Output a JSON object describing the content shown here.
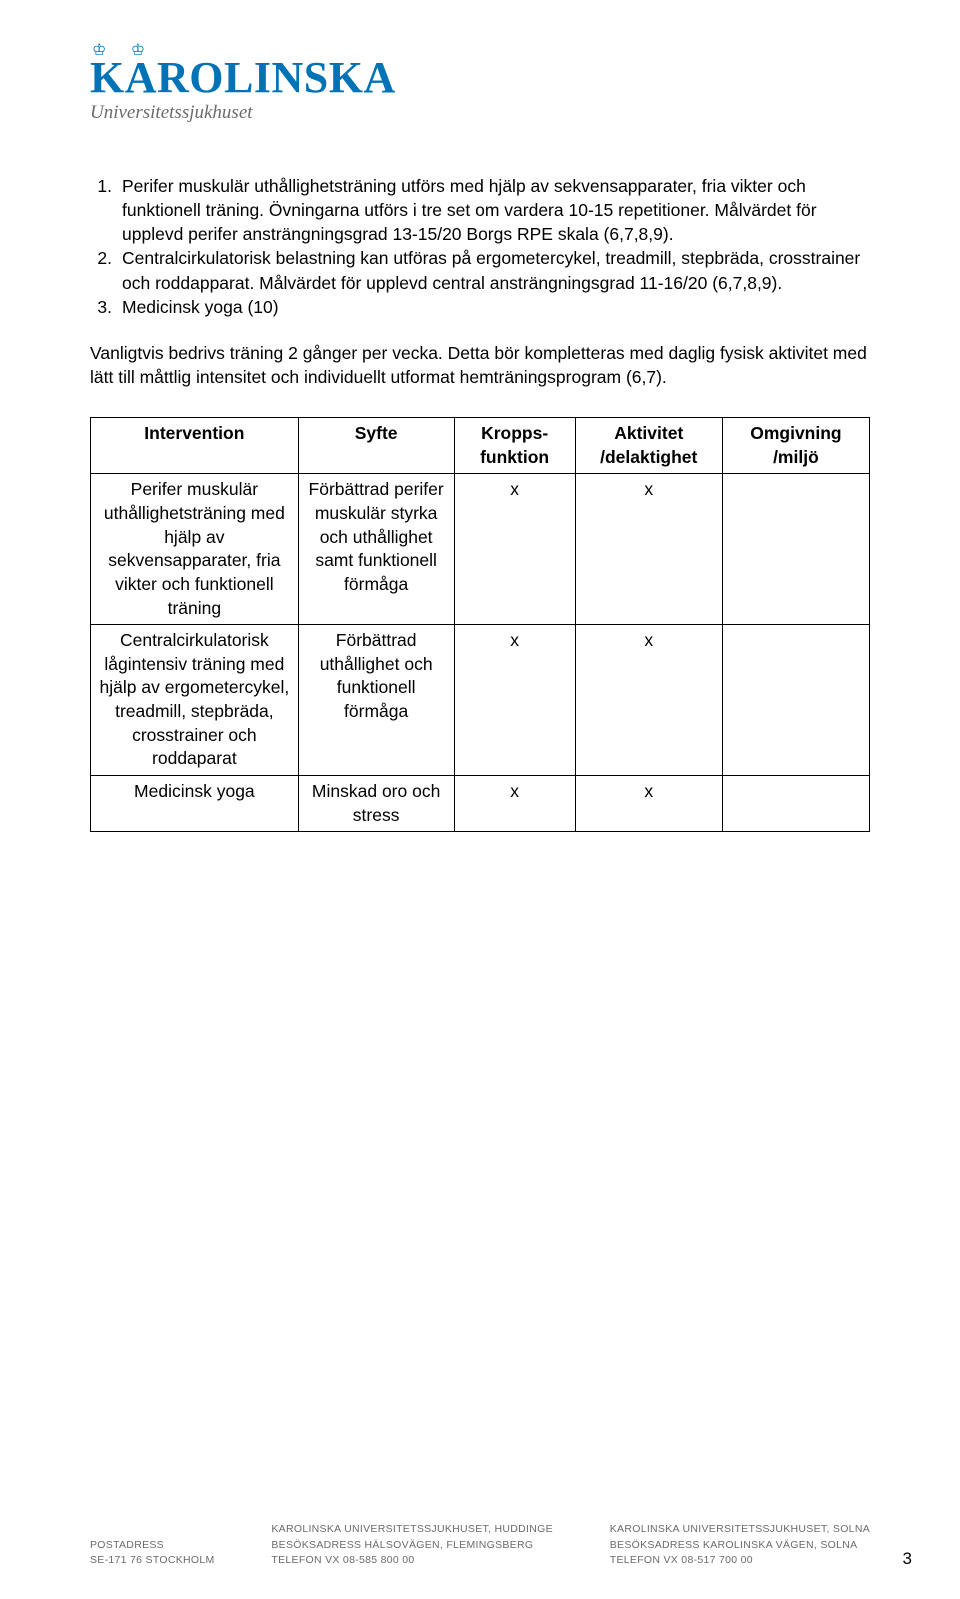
{
  "logo": {
    "main": "KAROLINSKA",
    "sub": "Universitetssjukhuset",
    "color": "#0073b6",
    "sub_color": "#6b6b6b"
  },
  "list": [
    {
      "num": "1.",
      "text": "Perifer muskulär uthållighetsträning utförs med hjälp av sekvensapparater, fria vikter och funktionell träning. Övningarna utförs i tre set om vardera 10-15 repetitioner. Målvärdet för upplevd perifer ansträngningsgrad 13-15/20 Borgs RPE skala (6,7,8,9)."
    },
    {
      "num": "2.",
      "text": "Centralcirkulatorisk belastning kan utföras på ergometercykel, treadmill, stepbräda, crosstrainer och roddapparat. Målvärdet för upplevd central ansträngningsgrad 11-16/20 (6,7,8,9)."
    },
    {
      "num": "3.",
      "text": "Medicinsk yoga (10)"
    }
  ],
  "paragraph": "Vanligtvis bedrivs träning 2 gånger per vecka. Detta bör kompletteras med daglig fysisk aktivitet med lätt till måttlig intensitet och individuellt utformat hemträningsprogram (6,7).",
  "table": {
    "headers": [
      "Intervention",
      "Syfte",
      "Kropps-\nfunktion",
      "Aktivitet\n/delaktighet",
      "Omgivning\n/miljö"
    ],
    "rows": [
      {
        "intervention": "Perifer muskulär uthållighetsträning med hjälp av sekvensapparater, fria vikter och funktionell träning",
        "syfte": "Förbättrad perifer muskulär styrka och uthållighet samt funktionell förmåga",
        "kropps": "x",
        "aktivitet": "x",
        "omgivning": ""
      },
      {
        "intervention": "Centralcirkulatorisk lågintensiv träning med hjälp av ergometercykel, treadmill, stepbräda, crosstrainer och roddaparat",
        "syfte": "Förbättrad uthållighet och funktionell förmåga",
        "kropps": "x",
        "aktivitet": "x",
        "omgivning": ""
      },
      {
        "intervention": "Medicinsk yoga",
        "syfte": "Minskad oro och stress",
        "kropps": "x",
        "aktivitet": "x",
        "omgivning": ""
      }
    ]
  },
  "footer": {
    "col1": {
      "l1": "POSTADRESS",
      "l2": "SE-171 76 STOCKHOLM"
    },
    "col2": {
      "l1": "KAROLINSKA UNIVERSITETSSJUKHUSET, HUDDINGE",
      "l2": "BESÖKSADRESS HÄLSOVÄGEN, FLEMINGSBERG",
      "l3": "TELEFON VX 08-585 800 00"
    },
    "col3": {
      "l1": "KAROLINSKA UNIVERSITETSSJUKHUSET, SOLNA",
      "l2": "BESÖKSADRESS KAROLINSKA VÄGEN, SOLNA",
      "l3": "TELEFON VX 08-517 700 00"
    }
  },
  "page_number": "3"
}
